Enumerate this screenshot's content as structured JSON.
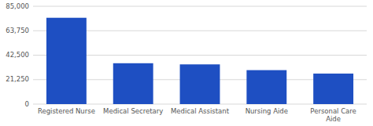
{
  "chart_data": {
    "type": "bar",
    "categories": [
      "Registered Nurse",
      "Medical Secretary",
      "Medical Assistant",
      "Nursing Aide",
      "Personal Care\nAide"
    ],
    "values": [
      75000,
      35500,
      34500,
      29500,
      26500
    ],
    "color": "#1e4fc2",
    "ylim": [
      0,
      85000
    ],
    "yticks": [
      0,
      {
        "value": 21250,
        "label": "21,250"
      },
      {
        "value": 42500,
        "label": "42,500"
      },
      {
        "value": 63750,
        "label": "63,750"
      },
      {
        "value": 85000,
        "label": "85,000"
      }
    ],
    "grid": true
  }
}
